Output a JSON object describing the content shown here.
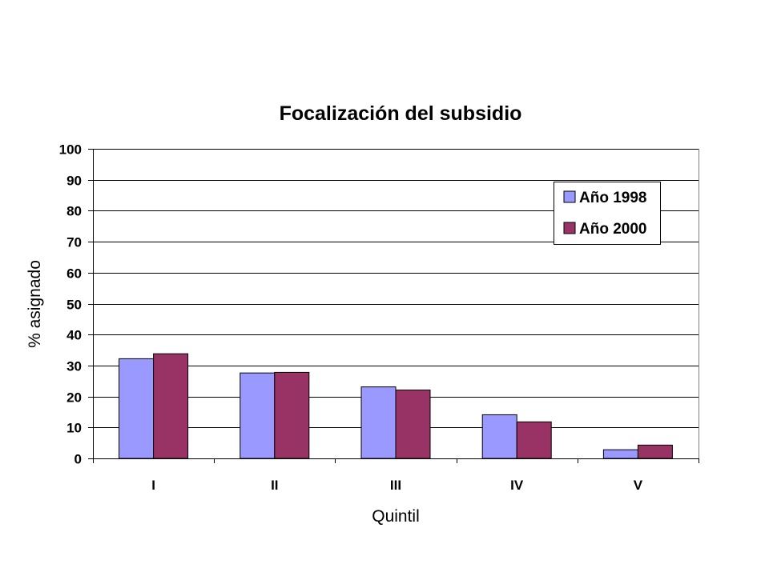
{
  "chart_data": {
    "type": "bar",
    "title": "Focalización del subsidio",
    "xlabel": "Quintil",
    "ylabel": "% asignado",
    "categories": [
      "I",
      "II",
      "III",
      "IV",
      "V"
    ],
    "series": [
      {
        "name": "Año 1998",
        "color": "#9999ff",
        "values": [
          32.2,
          27.6,
          23.1,
          14.1,
          2.8
        ]
      },
      {
        "name": "Año 2000",
        "color": "#993366",
        "values": [
          33.8,
          27.8,
          22.1,
          11.8,
          4.3
        ]
      }
    ],
    "ylim": [
      0,
      100
    ],
    "yticks": [
      0,
      10,
      20,
      30,
      40,
      50,
      60,
      70,
      80,
      90,
      100
    ],
    "grid": true,
    "legend_position": "top-right"
  }
}
